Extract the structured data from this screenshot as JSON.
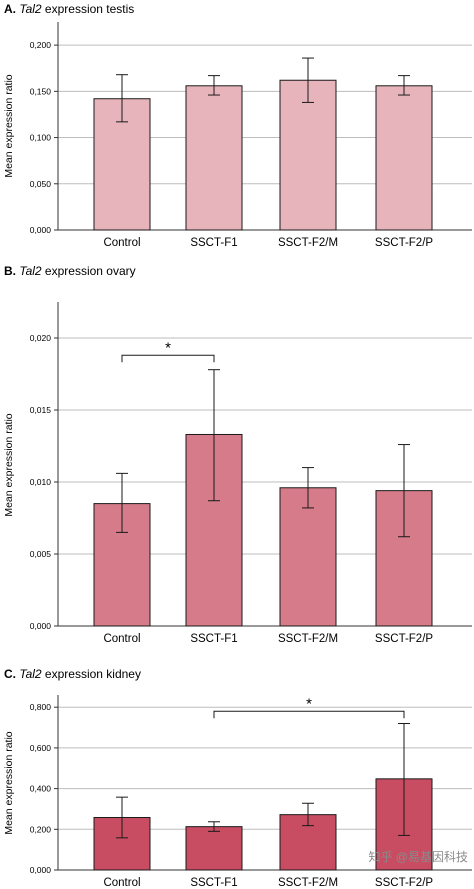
{
  "chart_data": [
    {
      "type": "bar",
      "panel_label": "A.",
      "title_gene": "Tal2",
      "title_rest": "expression testis",
      "ylabel": "Mean expression ratio",
      "xlabel": "",
      "categories": [
        "Control",
        "SSCT-F1",
        "SSCT-F2/M",
        "SSCT-F2/P"
      ],
      "values": [
        0.142,
        0.156,
        0.162,
        0.156
      ],
      "error_low": [
        0.117,
        0.146,
        0.138,
        0.146
      ],
      "error_high": [
        0.168,
        0.167,
        0.186,
        0.167
      ],
      "ylim": [
        0,
        0.225
      ],
      "yticks": [
        0,
        0.05,
        0.1,
        0.15,
        0.2
      ],
      "ytick_labels": [
        "0,000",
        "0,050",
        "0,100",
        "0,150",
        "0,200"
      ],
      "grid": true,
      "bar_color": "#e8b4bc",
      "significance": []
    },
    {
      "type": "bar",
      "panel_label": "B.",
      "title_gene": "Tal2",
      "title_rest": "expression ovary",
      "ylabel": "Mean expression ratio",
      "xlabel": "",
      "categories": [
        "Control",
        "SSCT-F1",
        "SSCT-F2/M",
        "SSCT-F2/P"
      ],
      "values": [
        0.0085,
        0.0133,
        0.0096,
        0.0094
      ],
      "error_low": [
        0.0065,
        0.0087,
        0.0082,
        0.0062
      ],
      "error_high": [
        0.0106,
        0.0178,
        0.011,
        0.0126
      ],
      "ylim": [
        0,
        0.0225
      ],
      "yticks": [
        0,
        0.005,
        0.01,
        0.015,
        0.02
      ],
      "ytick_labels": [
        "0,000",
        "0,005",
        "0,010",
        "0,015",
        "0,020"
      ],
      "grid": true,
      "bar_color": "#d67b89",
      "significance": [
        {
          "from": 0,
          "to": 1,
          "level": 0.0188,
          "label": "*"
        }
      ]
    },
    {
      "type": "bar",
      "panel_label": "C.",
      "title_gene": "Tal2",
      "title_rest": "expression kidney",
      "ylabel": "Mean expression ratio",
      "xlabel": "",
      "categories": [
        "Control",
        "SSCT-F1",
        "SSCT-F2/M",
        "SSCT-F2/P"
      ],
      "values": [
        0.258,
        0.213,
        0.272,
        0.448
      ],
      "error_low": [
        0.158,
        0.19,
        0.218,
        0.17
      ],
      "error_high": [
        0.358,
        0.237,
        0.328,
        0.72
      ],
      "ylim": [
        0,
        0.86
      ],
      "yticks": [
        0,
        0.2,
        0.4,
        0.6,
        0.8
      ],
      "ytick_labels": [
        "0,000",
        "0,200",
        "0,400",
        "0,600",
        "0,800"
      ],
      "grid": true,
      "bar_color": "#c84d62",
      "significance": [
        {
          "from": 1,
          "to": 3,
          "level": 0.78,
          "label": "*"
        }
      ]
    }
  ],
  "watermark": "知乎 @易基因科技"
}
